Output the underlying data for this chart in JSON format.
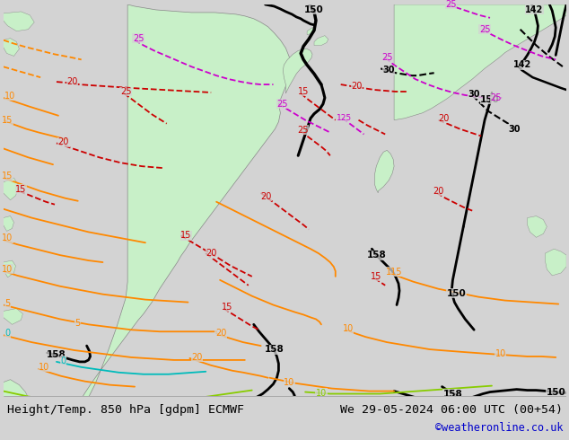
{
  "title_left": "Height/Temp. 850 hPa [gdpm] ECMWF",
  "title_right": "We 29-05-2024 06:00 UTC (00+54)",
  "credit": "©weatheronline.co.uk",
  "bg_color": "#d3d3d3",
  "ocean_color": "#d3d3d3",
  "land_color": "#c8f0c8",
  "land_color2": "#b8e8b8",
  "figsize": [
    6.34,
    4.9
  ],
  "dpi": 100,
  "credit_color": "#0000cc",
  "title_fontsize": 9.5,
  "credit_fontsize": 8.5,
  "black": "#000000",
  "red": "#cc0000",
  "orange": "#ff8800",
  "magenta": "#cc00cc",
  "green_bright": "#88cc00",
  "cyan": "#00bbbb",
  "border_color": "#888888"
}
